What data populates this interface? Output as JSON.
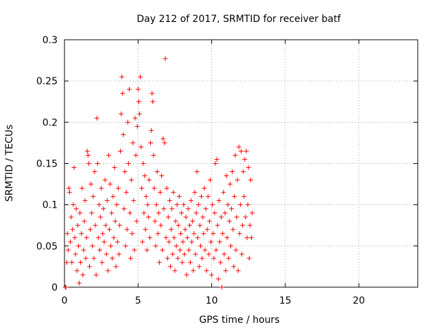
{
  "chart_data": {
    "type": "scatter",
    "title": "Day 212 of 2017, SRMTID for receiver batf",
    "xlabel": "GPS time / hours",
    "ylabel": "SRMTID / TECUs",
    "xlim": [
      0,
      24
    ],
    "ylim": [
      0,
      0.3
    ],
    "xticks": [
      0,
      5,
      10,
      15,
      20
    ],
    "yticks": [
      0,
      0.05,
      0.1,
      0.15,
      0.2,
      0.25,
      0.3
    ],
    "xtick_labels": [
      "0",
      "5",
      "10",
      "15",
      "20"
    ],
    "ytick_labels": [
      "0",
      "0.05",
      "0.1",
      "0.15",
      "0.2",
      "0.25",
      "0.3"
    ],
    "grid": true,
    "marker": "plus",
    "color": "#ff0000",
    "points": [
      [
        0.05,
        0.0
      ],
      [
        0.1,
        0.0
      ],
      [
        0.15,
        0.03
      ],
      [
        0.2,
        0.065
      ],
      [
        0.25,
        0.045
      ],
      [
        0.3,
        0.12
      ],
      [
        0.35,
        0.115
      ],
      [
        0.4,
        0.055
      ],
      [
        0.45,
        0.085
      ],
      [
        0.5,
        0.03
      ],
      [
        0.55,
        0.07
      ],
      [
        0.6,
        0.1
      ],
      [
        0.65,
        0.145
      ],
      [
        0.7,
        0.06
      ],
      [
        0.75,
        0.04
      ],
      [
        0.8,
        0.095
      ],
      [
        0.85,
        0.02
      ],
      [
        0.9,
        0.075
      ],
      [
        0.95,
        0.05
      ],
      [
        1.0,
        0.005
      ],
      [
        1.05,
        0.09
      ],
      [
        1.1,
        0.03
      ],
      [
        1.15,
        0.065
      ],
      [
        1.2,
        0.12
      ],
      [
        1.25,
        0.015
      ],
      [
        1.3,
        0.045
      ],
      [
        1.35,
        0.08
      ],
      [
        1.4,
        0.105
      ],
      [
        1.45,
        0.035
      ],
      [
        1.5,
        0.06
      ],
      [
        1.55,
        0.165
      ],
      [
        1.6,
        0.16
      ],
      [
        1.65,
        0.15
      ],
      [
        1.7,
        0.025
      ],
      [
        1.75,
        0.07
      ],
      [
        1.8,
        0.125
      ],
      [
        1.85,
        0.09
      ],
      [
        1.9,
        0.05
      ],
      [
        1.95,
        0.11
      ],
      [
        2.0,
        0.035
      ],
      [
        2.05,
        0.14
      ],
      [
        2.1,
        0.075
      ],
      [
        2.15,
        0.015
      ],
      [
        2.2,
        0.205
      ],
      [
        2.25,
        0.15
      ],
      [
        2.3,
        0.06
      ],
      [
        2.35,
        0.1
      ],
      [
        2.4,
        0.045
      ],
      [
        2.45,
        0.085
      ],
      [
        2.5,
        0.12
      ],
      [
        2.55,
        0.03
      ],
      [
        2.6,
        0.065
      ],
      [
        2.65,
        0.095
      ],
      [
        2.7,
        0.055
      ],
      [
        2.75,
        0.13
      ],
      [
        2.8,
        0.075
      ],
      [
        2.85,
        0.04
      ],
      [
        2.9,
        0.105
      ],
      [
        2.95,
        0.02
      ],
      [
        3.0,
        0.16
      ],
      [
        3.05,
        0.07
      ],
      [
        3.1,
        0.125
      ],
      [
        3.15,
        0.05
      ],
      [
        3.2,
        0.09
      ],
      [
        3.25,
        0.035
      ],
      [
        3.3,
        0.11
      ],
      [
        3.35,
        0.06
      ],
      [
        3.4,
        0.145
      ],
      [
        3.45,
        0.08
      ],
      [
        3.5,
        0.025
      ],
      [
        3.55,
        0.1
      ],
      [
        3.6,
        0.055
      ],
      [
        3.65,
        0.12
      ],
      [
        3.7,
        0.04
      ],
      [
        3.75,
        0.075
      ],
      [
        3.8,
        0.165
      ],
      [
        3.85,
        0.21
      ],
      [
        3.9,
        0.255
      ],
      [
        3.95,
        0.235
      ],
      [
        4.0,
        0.185
      ],
      [
        4.05,
        0.095
      ],
      [
        4.1,
        0.14
      ],
      [
        4.15,
        0.05
      ],
      [
        4.2,
        0.115
      ],
      [
        4.25,
        0.07
      ],
      [
        4.3,
        0.2
      ],
      [
        4.35,
        0.15
      ],
      [
        4.4,
        0.24
      ],
      [
        4.45,
        0.09
      ],
      [
        4.5,
        0.035
      ],
      [
        4.55,
        0.13
      ],
      [
        4.6,
        0.065
      ],
      [
        4.65,
        0.175
      ],
      [
        4.7,
        0.105
      ],
      [
        4.75,
        0.045
      ],
      [
        4.8,
        0.205
      ],
      [
        4.85,
        0.16
      ],
      [
        4.9,
        0.08
      ],
      [
        4.95,
        0.195
      ],
      [
        5.0,
        0.24
      ],
      [
        5.05,
        0.225
      ],
      [
        5.1,
        0.21
      ],
      [
        5.15,
        0.255
      ],
      [
        5.2,
        0.17
      ],
      [
        5.25,
        0.12
      ],
      [
        5.3,
        0.055
      ],
      [
        5.35,
        0.15
      ],
      [
        5.4,
        0.09
      ],
      [
        5.45,
        0.135
      ],
      [
        5.5,
        0.07
      ],
      [
        5.55,
        0.11
      ],
      [
        5.6,
        0.045
      ],
      [
        5.65,
        0.1
      ],
      [
        5.7,
        0.085
      ],
      [
        5.75,
        0.13
      ],
      [
        5.8,
        0.06
      ],
      [
        5.85,
        0.175
      ],
      [
        5.9,
        0.19
      ],
      [
        5.95,
        0.235
      ],
      [
        6.0,
        0.225
      ],
      [
        6.05,
        0.16
      ],
      [
        6.1,
        0.12
      ],
      [
        6.15,
        0.08
      ],
      [
        6.2,
        0.05
      ],
      [
        6.25,
        0.1
      ],
      [
        6.3,
        0.14
      ],
      [
        6.35,
        0.065
      ],
      [
        6.4,
        0.09
      ],
      [
        6.45,
        0.03
      ],
      [
        6.5,
        0.115
      ],
      [
        6.55,
        0.075
      ],
      [
        6.6,
        0.135
      ],
      [
        6.65,
        0.045
      ],
      [
        6.7,
        0.18
      ],
      [
        6.75,
        0.095
      ],
      [
        6.8,
        0.175
      ],
      [
        6.85,
        0.277
      ],
      [
        6.9,
        0.06
      ],
      [
        6.95,
        0.12
      ],
      [
        7.0,
        0.035
      ],
      [
        7.05,
        0.085
      ],
      [
        7.1,
        0.055
      ],
      [
        7.15,
        0.105
      ],
      [
        7.2,
        0.025
      ],
      [
        7.25,
        0.07
      ],
      [
        7.3,
        0.095
      ],
      [
        7.35,
        0.04
      ],
      [
        7.4,
        0.115
      ],
      [
        7.45,
        0.06
      ],
      [
        7.5,
        0.02
      ],
      [
        7.55,
        0.08
      ],
      [
        7.6,
        0.05
      ],
      [
        7.65,
        0.1
      ],
      [
        7.7,
        0.035
      ],
      [
        7.75,
        0.075
      ],
      [
        7.8,
        0.11
      ],
      [
        7.85,
        0.045
      ],
      [
        7.9,
        0.065
      ],
      [
        7.95,
        0.09
      ],
      [
        8.0,
        0.03
      ],
      [
        8.05,
        0.055
      ],
      [
        8.1,
        0.1
      ],
      [
        8.15,
        0.04
      ],
      [
        8.2,
        0.07
      ],
      [
        8.25,
        0.085
      ],
      [
        8.3,
        0.015
      ],
      [
        8.35,
        0.06
      ],
      [
        8.4,
        0.095
      ],
      [
        8.45,
        0.045
      ],
      [
        8.5,
        0.075
      ],
      [
        8.55,
        0.03
      ],
      [
        8.6,
        0.105
      ],
      [
        8.65,
        0.055
      ],
      [
        8.7,
        0.08
      ],
      [
        8.75,
        0.02
      ],
      [
        8.8,
        0.065
      ],
      [
        8.85,
        0.115
      ],
      [
        8.9,
        0.04
      ],
      [
        8.95,
        0.09
      ],
      [
        9.0,
        0.14
      ],
      [
        9.05,
        0.06
      ],
      [
        9.1,
        0.1
      ],
      [
        9.15,
        0.025
      ],
      [
        9.2,
        0.075
      ],
      [
        9.25,
        0.05
      ],
      [
        9.3,
        0.11
      ],
      [
        9.35,
        0.035
      ],
      [
        9.4,
        0.085
      ],
      [
        9.45,
        0.065
      ],
      [
        9.5,
        0.12
      ],
      [
        9.55,
        0.045
      ],
      [
        9.6,
        0.095
      ],
      [
        9.65,
        0.02
      ],
      [
        9.7,
        0.07
      ],
      [
        9.75,
        0.11
      ],
      [
        9.8,
        0.04
      ],
      [
        9.85,
        0.08
      ],
      [
        9.9,
        0.13
      ],
      [
        9.95,
        0.055
      ],
      [
        10.0,
        0.015
      ],
      [
        10.05,
        0.1
      ],
      [
        10.1,
        0.065
      ],
      [
        10.15,
        0.035
      ],
      [
        10.2,
        0.09
      ],
      [
        10.25,
        0.15
      ],
      [
        10.3,
        0.045
      ],
      [
        10.35,
        0.155
      ],
      [
        10.4,
        0.075
      ],
      [
        10.45,
        0.01
      ],
      [
        10.5,
        0.105
      ],
      [
        10.55,
        0.055
      ],
      [
        10.6,
        0.03
      ],
      [
        10.65,
        0.085
      ],
      [
        10.7,
        0.0
      ],
      [
        10.75,
        0.065
      ],
      [
        10.8,
        0.115
      ],
      [
        10.85,
        0.04
      ],
      [
        10.9,
        0.09
      ],
      [
        10.95,
        0.02
      ],
      [
        11.0,
        0.135
      ],
      [
        11.05,
        0.06
      ],
      [
        11.1,
        0.1
      ],
      [
        11.15,
        0.035
      ],
      [
        11.2,
        0.08
      ],
      [
        11.25,
        0.125
      ],
      [
        11.3,
        0.05
      ],
      [
        11.35,
        0.095
      ],
      [
        11.4,
        0.14
      ],
      [
        11.45,
        0.07
      ],
      [
        11.5,
        0.025
      ],
      [
        11.55,
        0.11
      ],
      [
        11.6,
        0.16
      ],
      [
        11.65,
        0.045
      ],
      [
        11.7,
        0.085
      ],
      [
        11.75,
        0.13
      ],
      [
        11.8,
        0.02
      ],
      [
        11.85,
        0.17
      ],
      [
        11.9,
        0.065
      ],
      [
        11.95,
        0.1
      ],
      [
        12.0,
        0.165
      ],
      [
        12.05,
        0.04
      ],
      [
        12.1,
        0.075
      ],
      [
        12.15,
        0.14
      ],
      [
        12.2,
        0.11
      ],
      [
        12.25,
        0.155
      ],
      [
        12.3,
        0.085
      ],
      [
        12.35,
        0.165
      ],
      [
        12.4,
        0.06
      ],
      [
        12.45,
        0.1
      ],
      [
        12.5,
        0.145
      ],
      [
        12.55,
        0.035
      ],
      [
        12.6,
        0.075
      ],
      [
        12.65,
        0.13
      ],
      [
        12.7,
        0.06
      ],
      [
        12.75,
        0.09
      ]
    ]
  }
}
